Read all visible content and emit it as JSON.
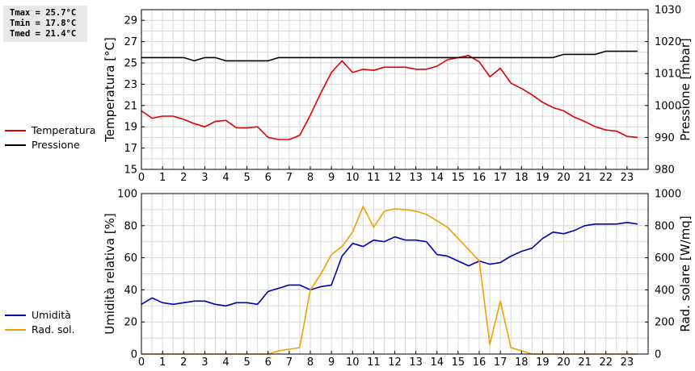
{
  "stats": {
    "tmax": "Tmax = 25.7°C",
    "tmin": "Tmin = 17.8°C",
    "tmed": "Tmed = 21.4°C"
  },
  "chart_data": [
    {
      "type": "line",
      "x": [
        0,
        0.5,
        1,
        1.5,
        2,
        2.5,
        3,
        3.5,
        4,
        4.5,
        5,
        5.5,
        6,
        6.5,
        7,
        7.5,
        8,
        8.5,
        9,
        9.5,
        10,
        10.5,
        11,
        11.5,
        12,
        12.5,
        13,
        13.5,
        14,
        14.5,
        15,
        15.5,
        16,
        16.5,
        17,
        17.5,
        18,
        18.5,
        19,
        19.5,
        20,
        20.5,
        21,
        21.5,
        22,
        22.5,
        23,
        23.5
      ],
      "xlim": [
        0,
        24
      ],
      "xticks": [
        "0",
        "1",
        "2",
        "3",
        "4",
        "5",
        "6",
        "7",
        "8",
        "9",
        "10",
        "11",
        "12",
        "13",
        "14",
        "15",
        "16",
        "17",
        "18",
        "19",
        "20",
        "21",
        "22",
        "23"
      ],
      "ylabel": "Temperatura [°C]",
      "ylim": [
        15,
        30
      ],
      "yticks": [
        "15",
        "17",
        "19",
        "21",
        "23",
        "25",
        "27",
        "29"
      ],
      "y2label": "Pressione [mbar]",
      "y2lim": [
        980,
        1030
      ],
      "y2ticks": [
        "980",
        "990",
        "1000",
        "1010",
        "1020",
        "1030"
      ],
      "grid": true,
      "legend_position": "left",
      "series": [
        {
          "name": "Temperatura",
          "axis": "left",
          "color": "#e00000",
          "values": [
            20.5,
            19.8,
            20.0,
            20.0,
            19.7,
            19.3,
            19.0,
            19.5,
            19.6,
            18.9,
            18.9,
            19.0,
            18.0,
            17.8,
            17.8,
            18.2,
            20.1,
            22.2,
            24.1,
            25.2,
            24.1,
            24.4,
            24.3,
            24.6,
            24.6,
            24.6,
            24.4,
            24.4,
            24.7,
            25.3,
            25.5,
            25.7,
            25.1,
            23.7,
            24.5,
            23.1,
            22.6,
            22.0,
            21.3,
            20.8,
            20.5,
            19.9,
            19.5,
            19.0,
            18.7,
            18.6,
            18.1,
            18.0
          ]
        },
        {
          "name": "Pressione",
          "axis": "right",
          "color": "#000000",
          "values": [
            1015,
            1015,
            1015,
            1015,
            1015,
            1014,
            1015,
            1015,
            1014,
            1014,
            1014,
            1014,
            1014,
            1015,
            1015,
            1015,
            1015,
            1015,
            1015,
            1015,
            1015,
            1015,
            1015,
            1015,
            1015,
            1015,
            1015,
            1015,
            1015,
            1015,
            1015,
            1015,
            1015,
            1015,
            1015,
            1015,
            1015,
            1015,
            1015,
            1015,
            1016,
            1016,
            1016,
            1016,
            1017,
            1017,
            1017,
            1017
          ]
        }
      ]
    },
    {
      "type": "line",
      "x": [
        0,
        0.5,
        1,
        1.5,
        2,
        2.5,
        3,
        3.5,
        4,
        4.5,
        5,
        5.5,
        6,
        6.5,
        7,
        7.5,
        8,
        8.5,
        9,
        9.5,
        10,
        10.5,
        11,
        11.5,
        12,
        12.5,
        13,
        13.5,
        14,
        14.5,
        15,
        15.5,
        16,
        16.5,
        17,
        17.5,
        18,
        18.5,
        19,
        19.5,
        20,
        20.5,
        21,
        21.5,
        22,
        22.5,
        23,
        23.5
      ],
      "xlim": [
        0,
        24
      ],
      "xticks": [
        "0",
        "1",
        "2",
        "3",
        "4",
        "5",
        "6",
        "7",
        "8",
        "9",
        "10",
        "11",
        "12",
        "13",
        "14",
        "15",
        "16",
        "17",
        "18",
        "19",
        "20",
        "21",
        "22",
        "23"
      ],
      "ylabel": "Umidità relativa [%]",
      "ylim": [
        0,
        100
      ],
      "yticks": [
        "0",
        "20",
        "40",
        "60",
        "80",
        "100"
      ],
      "y2label": "Rad. solare [W/mq]",
      "y2lim": [
        0,
        1000
      ],
      "y2ticks": [
        "0",
        "200",
        "400",
        "600",
        "800",
        "1000"
      ],
      "grid": true,
      "legend_position": "left",
      "series": [
        {
          "name": "Umidità",
          "axis": "left",
          "color": "#0000b0",
          "values": [
            31,
            35,
            32,
            31,
            32,
            33,
            33,
            31,
            30,
            32,
            32,
            31,
            39,
            41,
            43,
            43,
            40,
            42,
            43,
            61,
            69,
            67,
            71,
            70,
            73,
            71,
            71,
            70,
            62,
            61,
            58,
            55,
            58,
            56,
            57,
            61,
            64,
            66,
            72,
            76,
            75,
            77,
            80,
            81,
            81,
            81,
            82,
            81
          ]
        },
        {
          "name": "Rad. sol.",
          "axis": "right",
          "color": "#f0a000",
          "values": [
            0,
            0,
            0,
            0,
            0,
            0,
            0,
            0,
            0,
            0,
            0,
            0,
            0,
            20,
            30,
            40,
            400,
            500,
            620,
            670,
            760,
            920,
            790,
            890,
            905,
            900,
            890,
            870,
            830,
            790,
            720,
            650,
            580,
            60,
            330,
            40,
            20,
            0,
            0,
            0,
            0,
            0,
            0,
            0,
            0,
            0,
            0,
            0
          ]
        }
      ]
    }
  ]
}
